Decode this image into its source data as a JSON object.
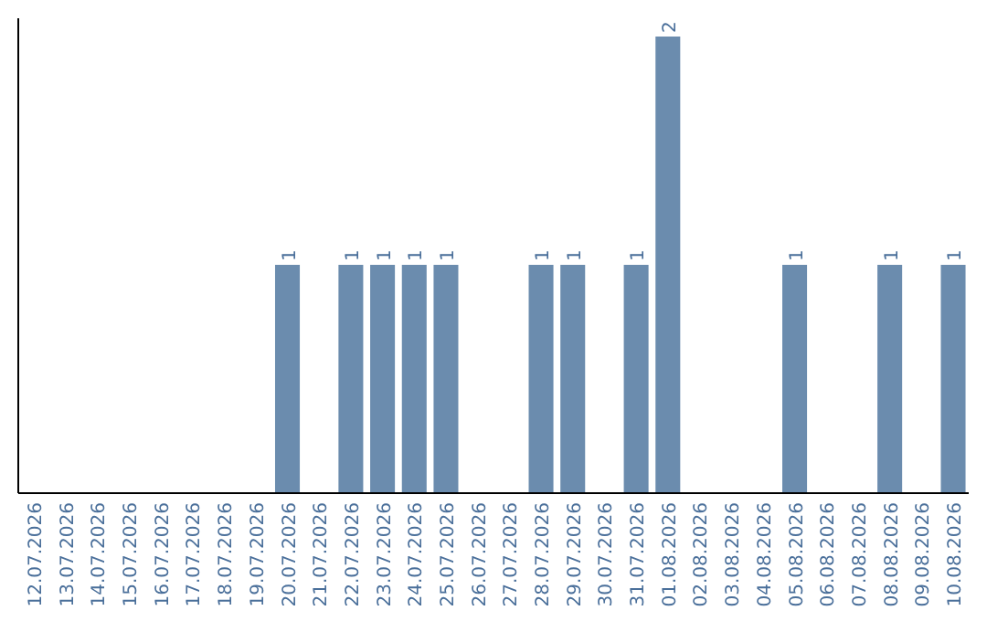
{
  "chart_data": {
    "type": "bar",
    "categories": [
      "12.07.2026",
      "13.07.2026",
      "14.07.2026",
      "15.07.2026",
      "16.07.2026",
      "17.07.2026",
      "18.07.2026",
      "19.07.2026",
      "20.07.2026",
      "21.07.2026",
      "22.07.2026",
      "23.07.2026",
      "24.07.2026",
      "25.07.2026",
      "26.07.2026",
      "27.07.2026",
      "28.07.2026",
      "29.07.2026",
      "30.07.2026",
      "31.07.2026",
      "01.08.2026",
      "02.08.2026",
      "03.08.2026",
      "04.08.2026",
      "05.08.2026",
      "06.08.2026",
      "07.08.2026",
      "08.08.2026",
      "09.08.2026",
      "10.08.2026"
    ],
    "values": [
      0,
      0,
      0,
      0,
      0,
      0,
      0,
      0,
      1,
      0,
      1,
      1,
      1,
      1,
      0,
      0,
      1,
      1,
      0,
      1,
      2,
      0,
      0,
      0,
      1,
      0,
      0,
      1,
      0,
      1
    ],
    "value_labels": [
      null,
      null,
      null,
      null,
      null,
      null,
      null,
      null,
      "1",
      null,
      "1",
      "1",
      "1",
      "1",
      null,
      null,
      "1",
      "1",
      null,
      "1",
      "2",
      null,
      null,
      null,
      "1",
      null,
      null,
      "1",
      null,
      "1"
    ],
    "color": "#6b8cae",
    "ylim": [
      0,
      2
    ],
    "tick_labels": "x"
  }
}
